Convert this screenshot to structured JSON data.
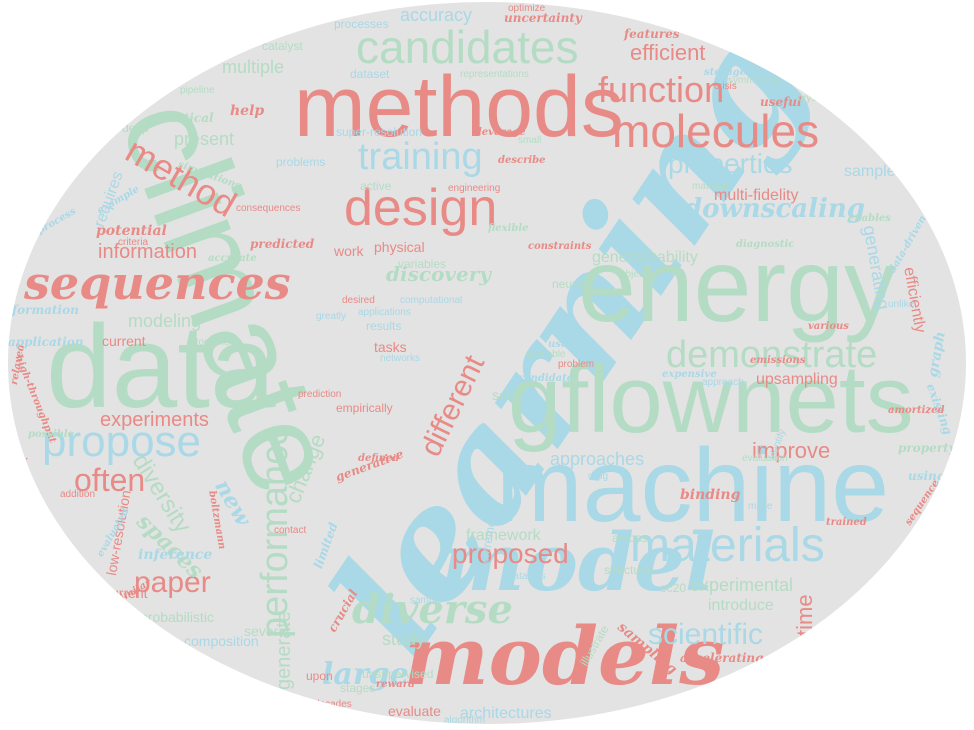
{
  "colors": {
    "background": "#e3e3e3",
    "blue": "#a9d8e6",
    "green": "#b4dcc4",
    "red": "#e88a86"
  },
  "words": {
    "learning": "learning",
    "climate": "climate",
    "machine": "machine",
    "energy": "energy",
    "gflownets": "gflownets",
    "data": "data",
    "methods": "methods",
    "models": "models",
    "model": "model",
    "candidates": "candidates",
    "molecules": "molecules",
    "design": "design",
    "materials": "materials",
    "sequences": "sequences",
    "diverse": "diverse",
    "demonstrate": "demonstrate",
    "performance": "performance",
    "propose": "propose",
    "training": "training",
    "function": "function",
    "method": "method",
    "downscaling": "downscaling",
    "properties": "properties",
    "different": "different",
    "paper": "paper",
    "proposed": "proposed",
    "scientific": "scientific",
    "large": "large",
    "often": "often",
    "experiments": "experiments",
    "diversity": "diversity",
    "spaces": "spaces",
    "efficient": "efficient",
    "accuracy": "accuracy",
    "multiple": "multiple",
    "information": "information",
    "modeling": "modeling",
    "discovery": "discovery",
    "generalizability": "generalizability",
    "improve": "improve",
    "experimental": "experimental",
    "time": "time",
    "introduce": "introduce",
    "approaches": "approaches",
    "generate": "generate",
    "change": "change",
    "new": "new",
    "present": "present",
    "requires": "requires",
    "potential": "potential",
    "help": "help",
    "generating": "generating",
    "efficiently": "efficiently",
    "multi_fidelity": "multi-fidelity",
    "upsampling": "upsampling",
    "samples": "samples",
    "study": "study",
    "framework": "framework",
    "architectures": "architectures",
    "evaluate": "evaluate",
    "composition": "composition",
    "probabilistic": "probabilistic",
    "current": "current",
    "tasks": "tasks",
    "results": "results",
    "physical": "physical",
    "work": "work",
    "variables": "variables",
    "neural": "neural",
    "candidate": "candidate",
    "set": "set",
    "empirically": "empirically",
    "binding": "binding",
    "generative": "generative",
    "inference": "inference",
    "limited": "limited",
    "crucial": "crucial",
    "unsupervised": "unsupervised",
    "stages": "stages",
    "several": "several",
    "upon": "upon",
    "sampling": "sampling",
    "accelerating": "accelerating",
    "oc20": "oc20",
    "across": "across",
    "structural": "structural",
    "datasets": "datasets",
    "epistemic": "epistemic",
    "low_resolution": "low-resolution",
    "high_throughput": "high-throughput",
    "relaxed": "relaxed",
    "boltzmann": "boltzmann",
    "application": "application",
    "formation": "formation",
    "process": "process",
    "example": "example",
    "practical": "practical",
    "simulations": "simulations",
    "deep": "deep",
    "pipeline": "pipeline",
    "catalyst": "catalyst",
    "dataset": "dataset",
    "processes": "processes",
    "uncertainty": "uncertainty",
    "optimize": "optimize",
    "features": "features",
    "distribution": "distribution",
    "useful": "useful",
    "crystal": "crystal",
    "leverage": "leverage",
    "super_resolution": "super-resolution",
    "small": "small",
    "describe": "describe",
    "problems": "problems",
    "active": "active",
    "consequences": "consequences",
    "predicted": "predicted",
    "accurate": "accurate",
    "criteria": "criteria",
    "diagnostic": "diagnostic",
    "constraints": "constraints",
    "desired": "desired",
    "applications": "applications",
    "property": "property",
    "graph": "graph",
    "using": "using",
    "existing": "existing",
    "amortized": "amortized",
    "emissions": "emissions",
    "various": "various",
    "expensive": "expensive",
    "sequence": "sequence",
    "trained": "trained",
    "reward": "reward",
    "algorithm": "algorithm",
    "extreme": "extreme",
    "problem": "problem",
    "available": "available",
    "used": "used",
    "networks": "networks",
    "addition": "addition",
    "prediction": "prediction",
    "data_driven": "data-driven",
    "enables": "enables",
    "objective": "objective",
    "engineering": "engineering",
    "representations": "representations",
    "symmetries": "symmetries",
    "storage": "storage",
    "material": "material",
    "altogether": "altogether",
    "computational": "computational",
    "sample": "sample",
    "illustrate": "illustrate",
    "drug": "drug",
    "identify": "identify",
    "flexible": "flexible",
    "greatly": "greatly",
    "decades": "decades",
    "defined": "defined",
    "contact": "contact",
    "similar": "similar",
    "evaluated": "evaluated",
    "possible": "possible",
    "unlike": "unlike",
    "approach": "approach",
    "make": "make",
    "crisis": "crisis",
    "scale": "scale",
    "evaluation": "evaluation",
    "predict": "predict"
  }
}
